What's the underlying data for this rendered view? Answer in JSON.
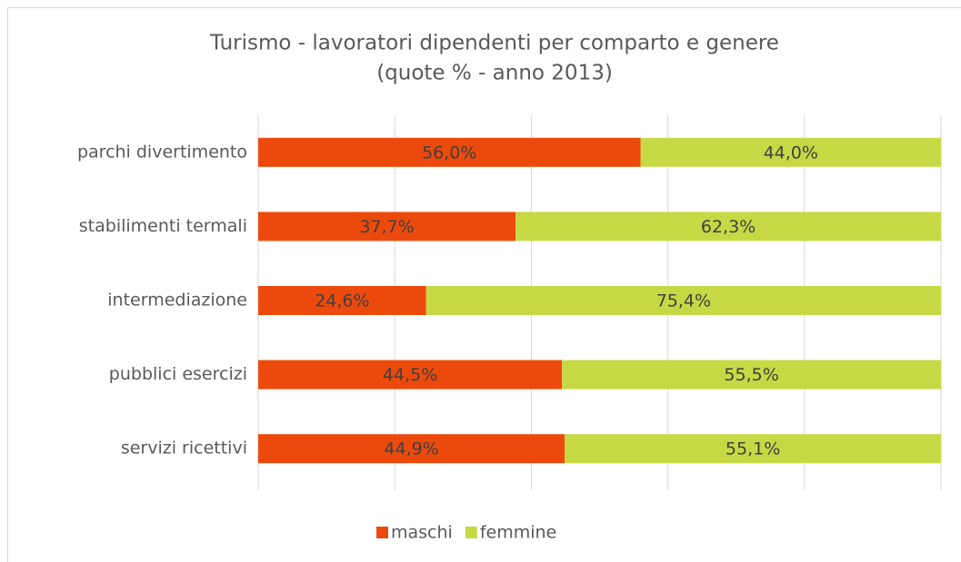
{
  "chart_data": {
    "type": "stacked_barh",
    "title": "Turismo - lavoratori dipendenti per comparto e genere",
    "subtitle": "(quote % - anno 2013)",
    "categories": [
      "parchi divertimento",
      "stabilimenti termali",
      "intermediazione",
      "pubblici esercizi",
      "servizi ricettivi"
    ],
    "series": [
      {
        "name": "maschi",
        "color": "#ec4a0c",
        "values": [
          56.0,
          37.7,
          24.6,
          44.5,
          44.9
        ],
        "value_labels": [
          "56,0%",
          "37,7%",
          "24,6%",
          "44,5%",
          "44,9%"
        ]
      },
      {
        "name": "femmine",
        "color": "#c6d945",
        "values": [
          44.0,
          62.3,
          75.4,
          55.5,
          55.1
        ],
        "value_labels": [
          "44,0%",
          "62,3%",
          "75,4%",
          "55,5%",
          "55,1%"
        ]
      }
    ],
    "xlim": [
      0,
      100
    ],
    "xticks": [
      0,
      20,
      40,
      60,
      80,
      100
    ],
    "grid": true,
    "legend": "bottom"
  }
}
